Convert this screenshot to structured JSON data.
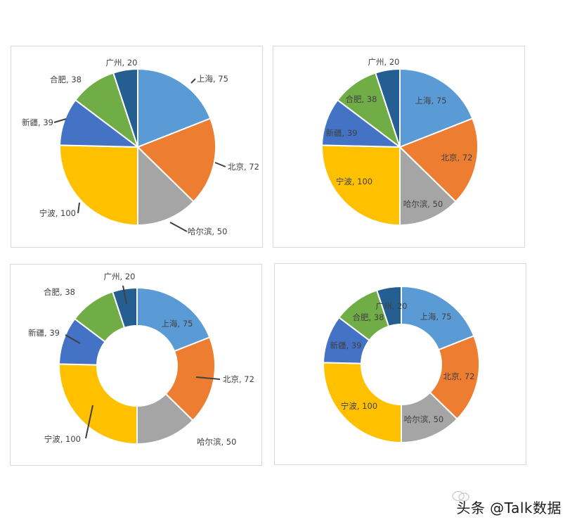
{
  "chart_data": [
    {
      "type": "pie",
      "label_style": "outside-leader",
      "categories": [
        "上海",
        "北京",
        "哈尔滨",
        "宁波",
        "新疆",
        "合肥",
        "广州"
      ],
      "values": [
        75,
        72,
        50,
        100,
        39,
        38,
        20
      ],
      "labels": [
        "上海, 75",
        "北京, 72",
        "哈尔滨, 50",
        "宁波, 100",
        "新疆, 39",
        "合肥, 38",
        "广州, 20"
      ]
    },
    {
      "type": "pie",
      "label_style": "inside",
      "categories": [
        "上海",
        "北京",
        "哈尔滨",
        "宁波",
        "新疆",
        "合肥",
        "广州"
      ],
      "values": [
        75,
        72,
        50,
        100,
        39,
        38,
        20
      ],
      "labels": [
        "上海, 75",
        "北京, 72",
        "哈尔滨, 50",
        "宁波, 100",
        "新疆, 39",
        "合肥, 38",
        "广州, 20"
      ]
    },
    {
      "type": "doughnut",
      "label_style": "outside-leader",
      "categories": [
        "上海",
        "北京",
        "哈尔滨",
        "宁波",
        "新疆",
        "合肥",
        "广州"
      ],
      "values": [
        75,
        72,
        50,
        100,
        39,
        38,
        20
      ],
      "labels": [
        "上海, 75",
        "北京, 72",
        "哈尔滨, 50",
        "宁波, 100",
        "新疆, 39",
        "合肥, 38",
        "广州, 20"
      ]
    },
    {
      "type": "doughnut",
      "label_style": "inside",
      "categories": [
        "上海",
        "北京",
        "哈尔滨",
        "宁波",
        "新疆",
        "合肥",
        "广州"
      ],
      "values": [
        75,
        72,
        50,
        100,
        39,
        38,
        20
      ],
      "labels": [
        "上海, 75",
        "北京, 72",
        "哈尔滨, 50",
        "宁波, 100",
        "新疆, 39",
        "合肥, 38",
        "广州, 20"
      ]
    }
  ],
  "colors": {
    "上海": "#5B9BD5",
    "北京": "#ED7D31",
    "哈尔滨": "#A5A5A5",
    "宁波": "#FFC000",
    "新疆": "#4472C4",
    "合肥": "#70AD47",
    "广州": "#255E91",
    "leader_line": "#404040",
    "slice_border": "#ffffff"
  },
  "watermark": {
    "text": "头条 @Talk数据",
    "icon": "wechat-icon"
  }
}
